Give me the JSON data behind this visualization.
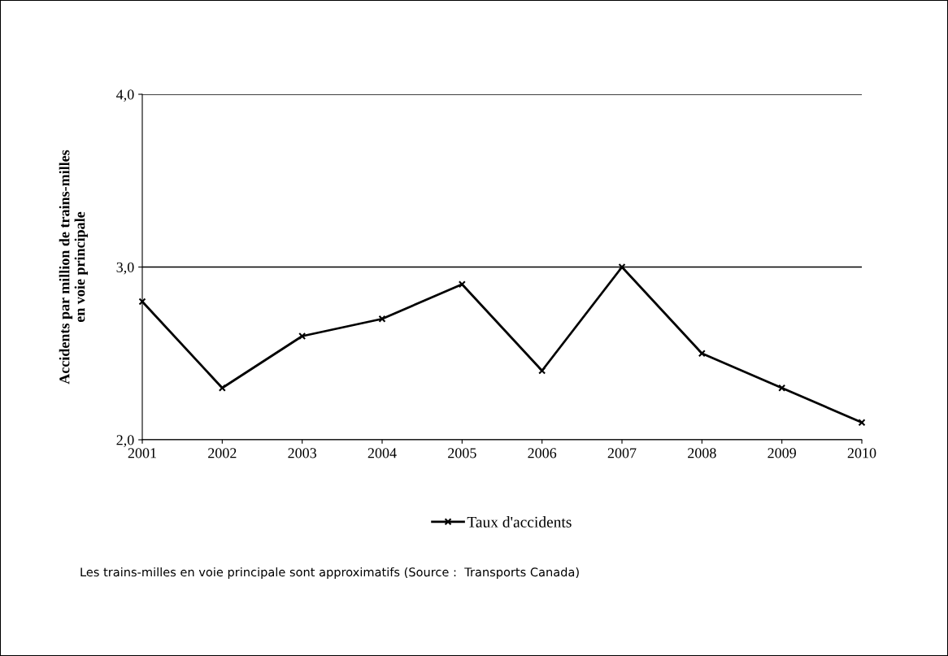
{
  "chart_data": {
    "type": "line",
    "ylabel": "Accidents par million de trains-milles\nen voie principale",
    "categories": [
      "2001",
      "2002",
      "2003",
      "2004",
      "2005",
      "2006",
      "2007",
      "2008",
      "2009",
      "2010"
    ],
    "series": [
      {
        "name": "Taux d'accidents",
        "color": "#000000",
        "values": [
          2.8,
          2.3,
          2.6,
          2.7,
          2.9,
          2.4,
          3.0,
          2.5,
          2.3,
          2.1
        ]
      }
    ],
    "ylim": [
      2.0,
      4.0
    ],
    "yticks": [
      {
        "value": 2.0,
        "label": "2,0"
      },
      {
        "value": 3.0,
        "label": "3,0"
      },
      {
        "value": 4.0,
        "label": "4,0"
      }
    ],
    "grid": "y",
    "legend": "bottom",
    "marker": "cross",
    "line_style": "solid",
    "annotations": [
      "Les trains-milles en voie principale sont approximatifs (Source :  Transports Canada)"
    ]
  }
}
